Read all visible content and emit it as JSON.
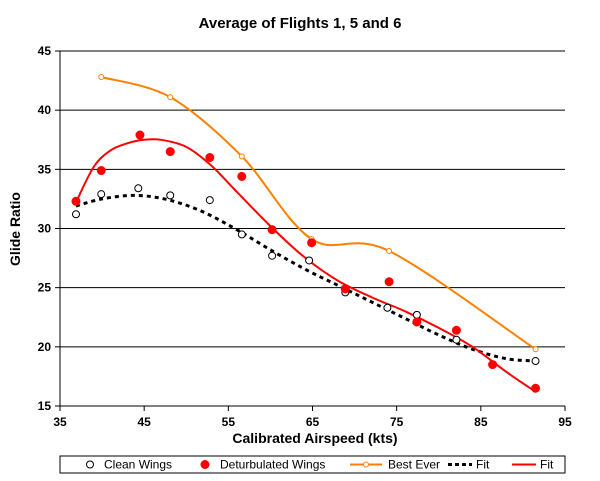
{
  "chart_data": {
    "type": "scatter",
    "title": "Average of Flights 1, 5 and 6",
    "xlabel": "Calibrated Airspeed (kts)",
    "ylabel": "Glide Ratio",
    "xlim": [
      35,
      95
    ],
    "ylim": [
      15,
      45
    ],
    "xticks": [
      35,
      45,
      55,
      65,
      75,
      85,
      95
    ],
    "yticks": [
      15,
      20,
      25,
      30,
      35,
      40,
      45
    ],
    "grid": "horizontal",
    "legend_position": "bottom",
    "series": [
      {
        "name": "Clean Wings",
        "kind": "marker",
        "marker": "open-circle",
        "color": "#000000",
        "x": [
          36.9,
          39.9,
          44.3,
          48.1,
          52.8,
          56.6,
          60.2,
          64.6,
          68.9,
          73.9,
          77.4,
          82.1,
          91.5
        ],
        "y": [
          31.2,
          32.9,
          33.4,
          32.8,
          32.4,
          29.5,
          27.7,
          27.3,
          24.6,
          23.3,
          22.7,
          20.6,
          18.8
        ]
      },
      {
        "name": "Deturbulated Wings",
        "kind": "marker",
        "marker": "filled-circle",
        "color": "#ff0000",
        "x": [
          36.9,
          39.9,
          44.5,
          48.1,
          52.8,
          56.6,
          60.2,
          64.9,
          68.9,
          74.1,
          77.4,
          82.1,
          86.4,
          91.5
        ],
        "y": [
          32.3,
          34.9,
          37.9,
          36.5,
          36.0,
          34.4,
          29.9,
          28.8,
          24.9,
          25.5,
          22.1,
          21.4,
          18.5,
          16.5
        ]
      },
      {
        "name": "Best Ever",
        "kind": "line-marker",
        "marker": "small-open-circle",
        "color": "#ff7f00",
        "x": [
          39.9,
          48.1,
          56.6,
          64.9,
          74.1,
          91.5
        ],
        "y": [
          42.8,
          41.1,
          36.1,
          29.1,
          28.1,
          19.8
        ]
      },
      {
        "name": "Fit",
        "kind": "line",
        "style": "dotted",
        "color": "#000000",
        "x": [
          36.9,
          40,
          44,
          48,
          52,
          56,
          60,
          64,
          68,
          72,
          76,
          80,
          84,
          88,
          91.5
        ],
        "y": [
          31.9,
          32.5,
          32.8,
          32.4,
          31.4,
          29.9,
          28.2,
          26.6,
          25.2,
          23.8,
          22.4,
          21.0,
          19.8,
          19.0,
          18.8
        ]
      },
      {
        "name": "Fit",
        "kind": "line",
        "style": "solid",
        "color": "#ff0000",
        "x": [
          36.9,
          39,
          41,
          43,
          45,
          47,
          50,
          53,
          56,
          60,
          64,
          68,
          72,
          76,
          80,
          84,
          88,
          91.5
        ],
        "y": [
          32.2,
          35.2,
          36.6,
          37.2,
          37.5,
          37.5,
          36.9,
          35.3,
          33.1,
          30.2,
          27.6,
          25.6,
          24.2,
          23.0,
          21.6,
          20.0,
          17.9,
          16.2
        ]
      }
    ]
  }
}
